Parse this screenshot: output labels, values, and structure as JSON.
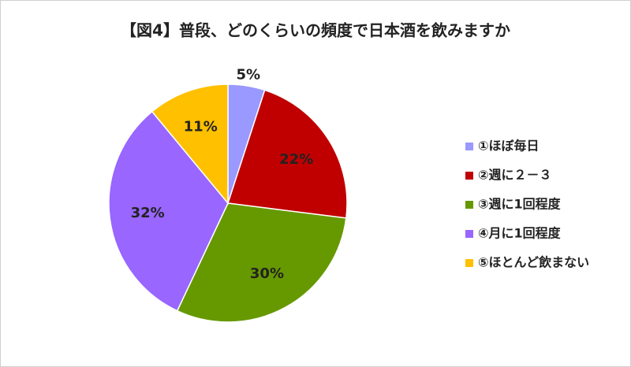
{
  "chart_data": {
    "type": "pie",
    "title": "【図4】普段、どのくらいの頻度で日本酒を飲みますか",
    "categories": [
      "①ほぼ毎日",
      "②週に２－３",
      "③週に1回程度",
      "④月に1回程度",
      "⑤ほとんど飲まない"
    ],
    "values": [
      5,
      22,
      30,
      32,
      11
    ],
    "value_labels": [
      "5%",
      "22%",
      "30%",
      "32%",
      "11%"
    ],
    "colors": [
      "#9999ff",
      "#c00000",
      "#669900",
      "#9966ff",
      "#ffc000"
    ],
    "legend": "right"
  }
}
